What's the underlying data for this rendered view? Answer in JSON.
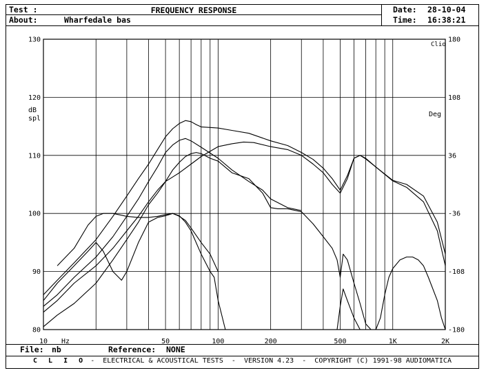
{
  "header": {
    "test_label": "Test :",
    "title": "FREQUENCY RESPONSE",
    "about_label": "About:",
    "about_value": "Wharfedale bas",
    "date_label": "Date:",
    "date_value": "28-10-04",
    "time_label": "Time:",
    "time_value": "16:38:21"
  },
  "footer": {
    "file_label": "File:",
    "file_value": "nb",
    "reference_label": "Reference:",
    "reference_value": "NONE"
  },
  "credits": {
    "brand": "C L I O",
    "text": " -  ELECTRICAL & ACOUSTICAL TESTS  -  VERSION 4.23  -  COPYRIGHT (C) 1991-98 AUDIOMATICA"
  },
  "chart_data": {
    "type": "line",
    "x_scale": "log",
    "xlim": [
      10,
      2000
    ],
    "x_ticks": [
      10,
      50,
      100,
      200,
      500,
      1000,
      2000
    ],
    "x_tick_labels": [
      "10",
      "50",
      "100",
      "200",
      "500",
      "1K",
      "2K"
    ],
    "x_unit": "Hz",
    "ylim": [
      80,
      130
    ],
    "y_ticks": [
      80,
      90,
      100,
      110,
      120,
      130
    ],
    "y_tick_labels": [
      "80",
      "90",
      "100",
      "110",
      "120",
      "130"
    ],
    "ylabel": "dB\nspl",
    "y2lim": [
      -180,
      180
    ],
    "y2_ticks": [
      -180,
      -108,
      -36,
      36,
      108,
      180
    ],
    "y2_tick_labels": [
      "-180",
      "-108",
      "-36",
      "36",
      "108",
      "180"
    ],
    "y2label": "Deg",
    "corner_label": "Clio",
    "grid": true,
    "series": [
      {
        "values": [
          [
            10,
            86
          ],
          [
            12,
            88.5
          ],
          [
            15,
            91.5
          ],
          [
            20,
            95.5
          ],
          [
            25,
            99.5
          ],
          [
            30,
            103
          ],
          [
            35,
            106
          ],
          [
            40,
            108.5
          ],
          [
            45,
            111
          ],
          [
            50,
            113.2
          ],
          [
            55,
            114.6
          ],
          [
            60,
            115.5
          ],
          [
            65,
            116
          ],
          [
            70,
            115.8
          ],
          [
            75,
            115.3
          ],
          [
            80,
            114.9
          ],
          [
            100,
            114.7
          ],
          [
            120,
            114.3
          ],
          [
            150,
            113.8
          ],
          [
            200,
            112.5
          ],
          [
            250,
            111.7
          ],
          [
            300,
            110.5
          ],
          [
            350,
            109.3
          ],
          [
            400,
            107.8
          ],
          [
            450,
            106
          ],
          [
            500,
            104
          ],
          [
            550,
            106.5
          ],
          [
            600,
            109.5
          ],
          [
            650,
            110
          ],
          [
            700,
            109.4
          ],
          [
            800,
            108
          ],
          [
            1000,
            105.7
          ],
          [
            1200,
            105
          ],
          [
            1500,
            103
          ],
          [
            1800,
            98.5
          ],
          [
            2000,
            93
          ]
        ]
      },
      {
        "values": [
          [
            10,
            84
          ],
          [
            12,
            86
          ],
          [
            15,
            89
          ],
          [
            20,
            92.5
          ],
          [
            25,
            96
          ],
          [
            30,
            99.5
          ],
          [
            35,
            102.5
          ],
          [
            40,
            105.5
          ],
          [
            45,
            108
          ],
          [
            50,
            110.5
          ],
          [
            55,
            111.8
          ],
          [
            60,
            112.6
          ],
          [
            65,
            112.9
          ],
          [
            70,
            112.5
          ],
          [
            80,
            111.4
          ],
          [
            100,
            109.5
          ],
          [
            120,
            107.5
          ],
          [
            150,
            105.5
          ],
          [
            180,
            104
          ],
          [
            200,
            102.5
          ],
          [
            250,
            101
          ],
          [
            300,
            100.5
          ]
        ]
      },
      {
        "values": [
          [
            10,
            80.5
          ],
          [
            12,
            82.5
          ],
          [
            15,
            84.5
          ],
          [
            20,
            88
          ],
          [
            25,
            92
          ],
          [
            30,
            95.5
          ],
          [
            35,
            98.5
          ],
          [
            40,
            101.5
          ],
          [
            45,
            103.5
          ],
          [
            50,
            105.5
          ],
          [
            55,
            107.5
          ],
          [
            60,
            108.8
          ],
          [
            65,
            109.8
          ],
          [
            70,
            110.3
          ],
          [
            75,
            110.5
          ],
          [
            80,
            110.3
          ],
          [
            90,
            109.5
          ],
          [
            100,
            109
          ],
          [
            120,
            107
          ],
          [
            150,
            106
          ],
          [
            180,
            103.5
          ],
          [
            200,
            101
          ],
          [
            220,
            100.8
          ],
          [
            250,
            100.8
          ],
          [
            300,
            100.3
          ],
          [
            350,
            98.2
          ],
          [
            400,
            96
          ],
          [
            450,
            94
          ],
          [
            480,
            92
          ],
          [
            500,
            89
          ],
          [
            520,
            93
          ],
          [
            550,
            92
          ],
          [
            600,
            88
          ],
          [
            650,
            84.5
          ],
          [
            700,
            81
          ],
          [
            750,
            80
          ]
        ]
      },
      {
        "values": [
          [
            10,
            83
          ],
          [
            12,
            85
          ],
          [
            15,
            88
          ],
          [
            20,
            91
          ],
          [
            25,
            94
          ],
          [
            30,
            97
          ],
          [
            35,
            99.5
          ],
          [
            40,
            102
          ],
          [
            45,
            104
          ],
          [
            50,
            105.5
          ],
          [
            60,
            107
          ],
          [
            70,
            108.5
          ],
          [
            80,
            109.8
          ],
          [
            100,
            111.5
          ],
          [
            120,
            112
          ],
          [
            140,
            112.3
          ],
          [
            160,
            112.2
          ],
          [
            200,
            111.5
          ],
          [
            250,
            111
          ],
          [
            300,
            110
          ],
          [
            350,
            108.5
          ],
          [
            400,
            107
          ],
          [
            450,
            105
          ],
          [
            500,
            103.5
          ],
          [
            550,
            106
          ],
          [
            600,
            109.5
          ],
          [
            650,
            110
          ],
          [
            700,
            109.5
          ],
          [
            800,
            108
          ],
          [
            1000,
            105.6
          ],
          [
            1200,
            104.5
          ],
          [
            1500,
            102
          ],
          [
            1800,
            97
          ],
          [
            2000,
            91
          ]
        ]
      },
      {
        "values": [
          [
            10,
            85
          ],
          [
            12,
            88
          ],
          [
            15,
            91
          ],
          [
            18,
            93.5
          ],
          [
            20,
            95
          ],
          [
            22,
            93.5
          ],
          [
            25,
            90
          ],
          [
            28,
            88.5
          ],
          [
            30,
            90
          ],
          [
            35,
            95
          ],
          [
            40,
            98.5
          ],
          [
            45,
            99.3
          ],
          [
            50,
            99.6
          ],
          [
            55,
            100
          ],
          [
            60,
            99.6
          ],
          [
            65,
            98.5
          ],
          [
            70,
            97
          ],
          [
            80,
            93
          ],
          [
            90,
            90
          ],
          [
            95,
            89
          ],
          [
            100,
            85
          ],
          [
            110,
            80
          ]
        ]
      },
      {
        "values": [
          [
            12,
            91
          ],
          [
            15,
            94
          ],
          [
            18,
            98
          ],
          [
            20,
            99.5
          ],
          [
            22,
            100
          ],
          [
            25,
            100
          ],
          [
            30,
            99.5
          ],
          [
            35,
            99.3
          ],
          [
            40,
            99.3
          ],
          [
            45,
            99.5
          ],
          [
            50,
            99.8
          ],
          [
            55,
            100
          ],
          [
            60,
            99.5
          ],
          [
            65,
            98.8
          ],
          [
            70,
            97.5
          ],
          [
            80,
            95
          ],
          [
            90,
            93
          ],
          [
            100,
            90
          ]
        ]
      },
      {
        "values": [
          [
            800,
            80
          ],
          [
            850,
            82
          ],
          [
            900,
            86
          ],
          [
            950,
            89
          ],
          [
            1000,
            90.5
          ],
          [
            1100,
            92
          ],
          [
            1200,
            92.5
          ],
          [
            1300,
            92.5
          ],
          [
            1400,
            92
          ],
          [
            1500,
            91
          ],
          [
            1600,
            89
          ],
          [
            1800,
            85
          ],
          [
            1900,
            82
          ],
          [
            2000,
            80
          ]
        ]
      },
      {
        "values": [
          [
            480,
            80
          ],
          [
            500,
            84
          ],
          [
            520,
            87
          ],
          [
            550,
            85
          ],
          [
            600,
            82
          ],
          [
            650,
            80
          ]
        ]
      }
    ]
  }
}
